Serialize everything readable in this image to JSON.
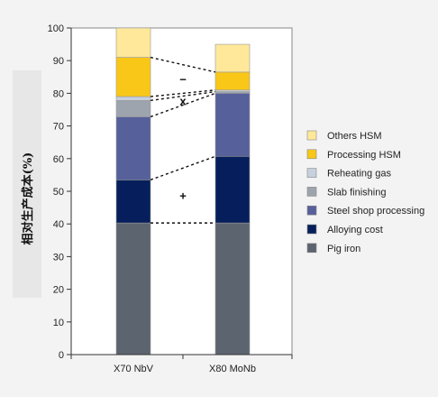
{
  "chart_data": {
    "type": "bar",
    "stacked": true,
    "categories": [
      "X70 NbV",
      "X80 MoNb"
    ],
    "ylabel": "相对生产成本(%)",
    "xlabel": "",
    "title": "",
    "ylim": [
      0,
      100
    ],
    "yticks": [
      0,
      10,
      20,
      30,
      40,
      50,
      60,
      70,
      80,
      90,
      100
    ],
    "grid": false,
    "legend_position": "right",
    "series": [
      {
        "name": "Pig iron",
        "color": "#5c6470",
        "values": [
          40.3,
          40.3
        ]
      },
      {
        "name": "Alloying cost",
        "color": "#061f5c",
        "values": [
          13.2,
          20.4
        ]
      },
      {
        "name": "Steel shop processing",
        "color": "#56609a",
        "values": [
          19.3,
          19.3
        ]
      },
      {
        "name": "Slab finishing",
        "color": "#9ea4ae",
        "values": [
          5.0,
          0.5
        ]
      },
      {
        "name": "Reheating gas",
        "color": "#c7d0dd",
        "values": [
          1.2,
          0.5
        ]
      },
      {
        "name": "Processing HSM",
        "color": "#f9c718",
        "values": [
          12.0,
          5.5
        ]
      },
      {
        "name": "Others HSM",
        "color": "#ffe89a",
        "values": [
          9.0,
          8.5
        ]
      }
    ],
    "annotations": [
      {
        "text": "+",
        "between_series": "Alloying cost"
      },
      {
        "text": "x",
        "between_series": "Slab finishing"
      },
      {
        "text": "−",
        "between_series": "Processing HSM"
      }
    ]
  }
}
